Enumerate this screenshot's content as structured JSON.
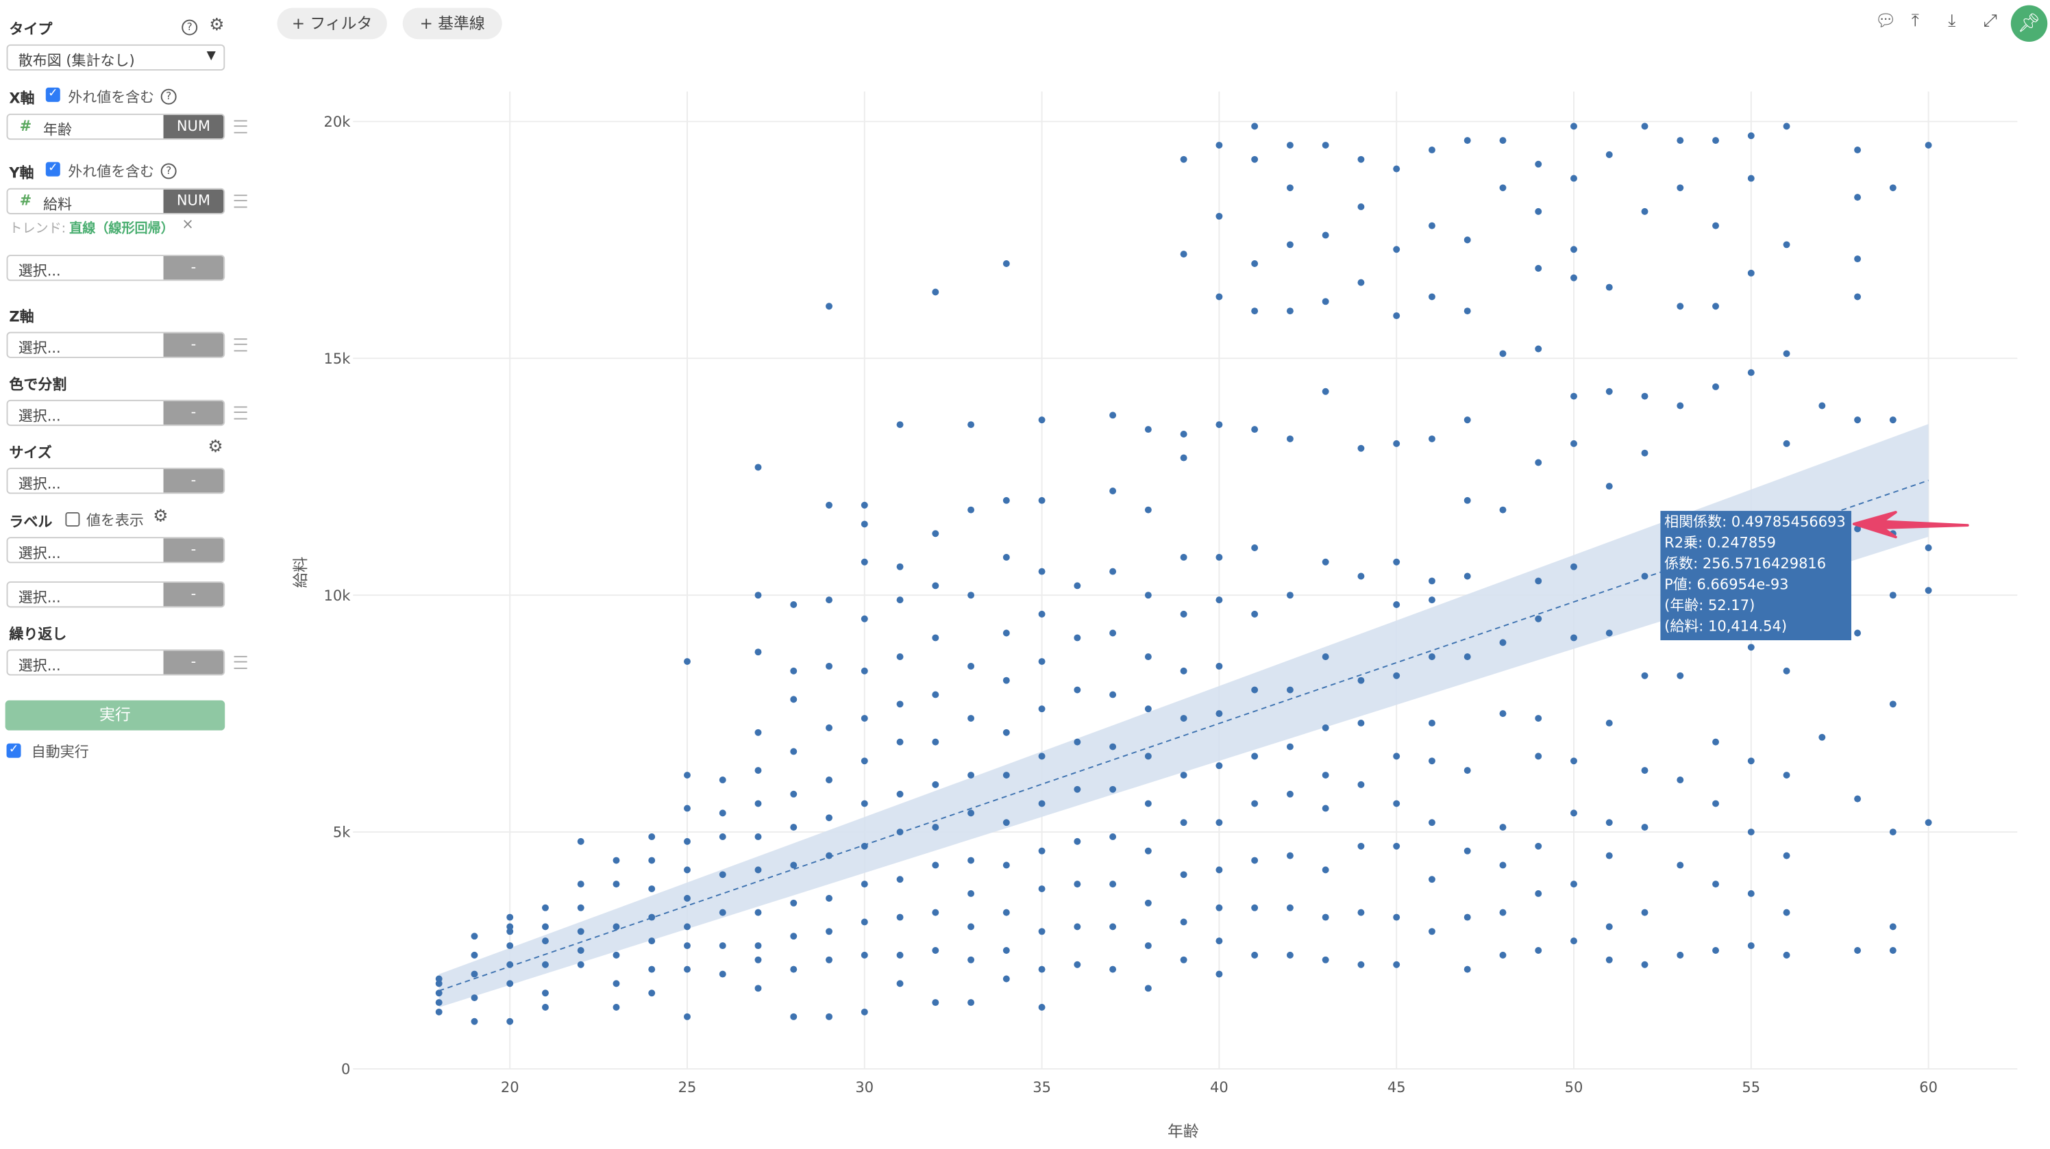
{
  "sidebar": {
    "type_label": "タイプ",
    "type_value": "散布図 (集計なし)",
    "x_label": "X軸",
    "x_outlier": "外れ値を含む",
    "x_field": "年齢",
    "x_type": "NUM",
    "y_label": "Y軸",
    "y_outlier": "外れ値を含む",
    "y_field": "給料",
    "y_type": "NUM",
    "trend_label": "トレンド:",
    "trend_value": "直線（線形回帰）",
    "select_placeholder": "選択...",
    "dash": "-",
    "z_label": "Z軸",
    "color_label": "色で分割",
    "size_label": "サイズ",
    "label_label": "ラベル",
    "label_show": "値を表示",
    "repeat_label": "繰り返し",
    "run_label": "実行",
    "auto_run": "自動実行"
  },
  "toolbar": {
    "filter": "+ フィルタ",
    "reference": "+ 基準線"
  },
  "colors": {
    "point": "#3d72b0",
    "band": "#d6e1ef",
    "accent": "#4caf72",
    "arrow": "#e8436a"
  },
  "tooltip": [
    "相関係数: 0.49785456693",
    "R2乗: 0.247859",
    "係数: 256.5716429816",
    "P値: 6.66954e-93",
    "(年齢: 52.17)",
    "(給料: 10,414.54)"
  ],
  "chart_data": {
    "type": "scatter",
    "xlabel": "年齢",
    "ylabel": "給料",
    "xlim": [
      16,
      63
    ],
    "ylim": [
      0,
      20500
    ],
    "xticks": [
      20,
      25,
      30,
      35,
      40,
      45,
      50,
      55,
      60
    ],
    "yticks": [
      {
        "v": 0,
        "label": "0"
      },
      {
        "v": 5000,
        "label": "5k"
      },
      {
        "v": 10000,
        "label": "10k"
      },
      {
        "v": 15000,
        "label": "15k"
      },
      {
        "v": 20000,
        "label": "20k"
      }
    ],
    "grid": true,
    "trend": {
      "type": "linear",
      "slope": 256.5716429816,
      "point": [
        52.17,
        10414.54
      ],
      "x_range": [
        18,
        60
      ]
    },
    "points_by_age_thousands": [
      [
        18,
        [
          1.2,
          1.4,
          1.6,
          1.8,
          1.9
        ]
      ],
      [
        19,
        [
          1.0,
          1.5,
          2.0,
          2.4,
          2.8
        ]
      ],
      [
        20,
        [
          1.0,
          1.8,
          2.2,
          2.6,
          2.9,
          3.0,
          3.2
        ]
      ],
      [
        21,
        [
          1.3,
          1.6,
          2.2,
          2.7,
          3.0,
          3.4
        ]
      ],
      [
        22,
        [
          2.2,
          2.5,
          2.9,
          3.4,
          3.9,
          4.8
        ]
      ],
      [
        23,
        [
          1.3,
          1.8,
          2.4,
          3.0,
          3.9,
          4.4
        ]
      ],
      [
        24,
        [
          1.6,
          2.1,
          2.7,
          3.2,
          3.8,
          4.4,
          4.9
        ]
      ],
      [
        25,
        [
          1.1,
          2.1,
          2.6,
          3.0,
          3.6,
          4.2,
          4.8,
          5.5,
          6.2,
          8.6
        ]
      ],
      [
        26,
        [
          2.0,
          2.6,
          3.3,
          4.1,
          4.9,
          5.4,
          6.1
        ]
      ],
      [
        27,
        [
          1.7,
          2.3,
          2.6,
          3.3,
          4.2,
          4.9,
          5.6,
          6.3,
          7.1,
          8.8,
          10.0,
          12.7
        ]
      ],
      [
        28,
        [
          1.1,
          2.1,
          2.8,
          3.5,
          4.3,
          5.1,
          5.8,
          6.7,
          7.8,
          8.4,
          9.8
        ]
      ],
      [
        29,
        [
          1.1,
          2.3,
          2.9,
          3.6,
          4.5,
          5.3,
          6.1,
          7.2,
          8.5,
          9.9,
          11.9,
          16.1
        ]
      ],
      [
        30,
        [
          1.2,
          2.4,
          3.1,
          3.9,
          4.7,
          5.6,
          6.5,
          7.4,
          8.4,
          9.5,
          10.7,
          11.5,
          11.9
        ]
      ],
      [
        31,
        [
          1.8,
          2.4,
          3.2,
          4.0,
          5.0,
          5.8,
          6.9,
          7.7,
          8.7,
          9.9,
          10.6,
          13.6
        ]
      ],
      [
        32,
        [
          1.4,
          2.5,
          3.3,
          4.3,
          5.1,
          6.0,
          6.9,
          7.9,
          9.1,
          10.2,
          11.3,
          16.4
        ]
      ],
      [
        33,
        [
          1.4,
          2.3,
          3.0,
          3.7,
          4.4,
          5.4,
          6.2,
          7.4,
          8.5,
          10.0,
          11.8,
          13.6
        ]
      ],
      [
        34,
        [
          1.9,
          2.5,
          3.3,
          4.3,
          5.2,
          6.2,
          7.1,
          8.2,
          9.2,
          10.8,
          12.0,
          17.0
        ]
      ],
      [
        35,
        [
          1.3,
          2.1,
          2.9,
          3.8,
          4.6,
          5.6,
          6.6,
          7.6,
          8.6,
          9.6,
          10.5,
          12.0,
          13.7
        ]
      ],
      [
        36,
        [
          2.2,
          3.0,
          3.9,
          4.8,
          5.9,
          6.9,
          8.0,
          9.1,
          10.2
        ]
      ],
      [
        37,
        [
          2.1,
          3.0,
          3.9,
          4.9,
          5.9,
          6.8,
          7.9,
          9.2,
          10.5,
          12.2,
          13.8
        ]
      ],
      [
        38,
        [
          1.7,
          2.6,
          3.5,
          4.6,
          5.6,
          6.6,
          7.6,
          8.7,
          10.0,
          11.8,
          13.5
        ]
      ],
      [
        39,
        [
          2.3,
          3.1,
          4.1,
          5.2,
          6.2,
          7.4,
          8.4,
          9.6,
          10.8,
          12.9,
          13.4,
          17.2,
          19.2
        ]
      ],
      [
        40,
        [
          2.0,
          2.7,
          3.4,
          4.2,
          5.2,
          6.4,
          7.5,
          8.5,
          9.9,
          10.8,
          13.6,
          16.3,
          18.0,
          19.5
        ]
      ],
      [
        41,
        [
          2.4,
          3.4,
          4.4,
          5.6,
          6.6,
          8.0,
          9.6,
          11.0,
          13.5,
          16.0,
          17.0,
          19.2,
          19.9
        ]
      ],
      [
        42,
        [
          2.4,
          3.4,
          4.5,
          5.8,
          6.8,
          8.0,
          10.0,
          13.3,
          16.0,
          17.4,
          18.6,
          19.5
        ]
      ],
      [
        43,
        [
          2.3,
          3.2,
          4.2,
          5.5,
          6.2,
          7.2,
          8.7,
          10.7,
          14.3,
          16.2,
          17.6,
          19.5
        ]
      ],
      [
        44,
        [
          2.2,
          3.3,
          4.7,
          6.0,
          7.3,
          8.2,
          10.4,
          13.1,
          16.6,
          18.2,
          19.2
        ]
      ],
      [
        45,
        [
          2.2,
          3.2,
          4.7,
          5.6,
          6.6,
          8.3,
          9.8,
          10.7,
          13.2,
          15.9,
          17.3,
          19.0
        ]
      ],
      [
        46,
        [
          2.9,
          4.0,
          5.2,
          6.5,
          7.3,
          8.7,
          9.9,
          10.3,
          13.3,
          16.3,
          17.8,
          19.4
        ]
      ],
      [
        47,
        [
          2.1,
          3.2,
          4.6,
          6.3,
          8.7,
          10.4,
          12.0,
          13.7,
          16.0,
          17.5,
          19.6
        ]
      ],
      [
        48,
        [
          2.4,
          3.3,
          4.3,
          5.1,
          7.5,
          9.0,
          11.8,
          15.1,
          18.6,
          19.6
        ]
      ],
      [
        49,
        [
          2.5,
          3.7,
          4.7,
          6.6,
          7.4,
          9.5,
          10.3,
          12.8,
          15.2,
          16.9,
          18.1,
          19.1
        ]
      ],
      [
        50,
        [
          2.7,
          3.9,
          5.4,
          6.5,
          9.1,
          10.6,
          13.2,
          14.2,
          16.7,
          17.3,
          18.8,
          19.9
        ]
      ],
      [
        51,
        [
          2.3,
          3.0,
          4.5,
          5.2,
          7.3,
          9.2,
          12.3,
          14.3,
          16.5,
          19.3
        ]
      ],
      [
        52,
        [
          2.2,
          3.3,
          5.1,
          6.3,
          8.3,
          10.4,
          13.0,
          14.2,
          18.1,
          19.9
        ]
      ],
      [
        53,
        [
          2.4,
          4.3,
          6.1,
          8.3,
          9.6,
          11.4,
          14.0,
          16.1,
          18.6,
          19.6
        ]
      ],
      [
        54,
        [
          2.5,
          3.9,
          5.6,
          6.9,
          9.5,
          11.2,
          14.4,
          16.1,
          17.8,
          19.6
        ]
      ],
      [
        55,
        [
          2.6,
          3.7,
          5.0,
          6.5,
          8.9,
          11.1,
          14.7,
          16.8,
          18.8,
          19.7
        ]
      ],
      [
        56,
        [
          2.4,
          3.3,
          4.5,
          6.2,
          8.4,
          10.3,
          13.2,
          15.1,
          17.4,
          19.9
        ]
      ],
      [
        57,
        [
          7.0,
          14.0
        ]
      ],
      [
        58,
        [
          2.5,
          5.7,
          9.2,
          11.4,
          13.7,
          16.3,
          17.1,
          18.4,
          19.4
        ]
      ],
      [
        59,
        [
          2.5,
          3.0,
          5.0,
          7.7,
          10.0,
          11.3,
          13.7,
          18.6
        ]
      ],
      [
        60,
        [
          5.2,
          10.1,
          11.0,
          19.5
        ]
      ]
    ]
  }
}
